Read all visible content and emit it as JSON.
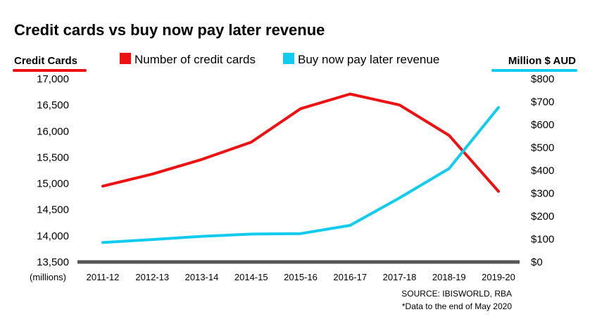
{
  "chart_data": {
    "type": "line",
    "title": "Credit cards vs buy now pay later revenue",
    "y_left_label": "Credit Cards",
    "y_left_unit": "(millions)",
    "y_right_label": "Million $ AUD",
    "categories": [
      "2011-12",
      "2012-13",
      "2013-14",
      "2014-15",
      "2015-16",
      "2016-17",
      "2017-18",
      "2018-19",
      "2019-20"
    ],
    "y_left_ticks": [
      "13,500",
      "14,000",
      "14,500",
      "15,000",
      "15,500",
      "16,000",
      "16,500",
      "17,000"
    ],
    "y_right_ticks": [
      "$0",
      "$100",
      "$200",
      "$300",
      "$400",
      "$500",
      "$600",
      "$700",
      "$800"
    ],
    "ylim_left": [
      13500,
      17000
    ],
    "ylim_right": [
      0,
      800
    ],
    "series": [
      {
        "name": "Number of credit cards",
        "axis": "left",
        "color": "#ee1111",
        "values": [
          14950,
          15180,
          15460,
          15790,
          16430,
          16710,
          16500,
          15920,
          14850
        ]
      },
      {
        "name": "Buy now pay later revenue",
        "axis": "right",
        "color": "#11ccee",
        "values": [
          85,
          98,
          112,
          122,
          124,
          160,
          280,
          408,
          675
        ]
      }
    ],
    "legend_position": "top",
    "grid": false,
    "source": "SOURCE: IBISWORLD, RBA",
    "footnote": "*Data to the end of May 2020"
  }
}
